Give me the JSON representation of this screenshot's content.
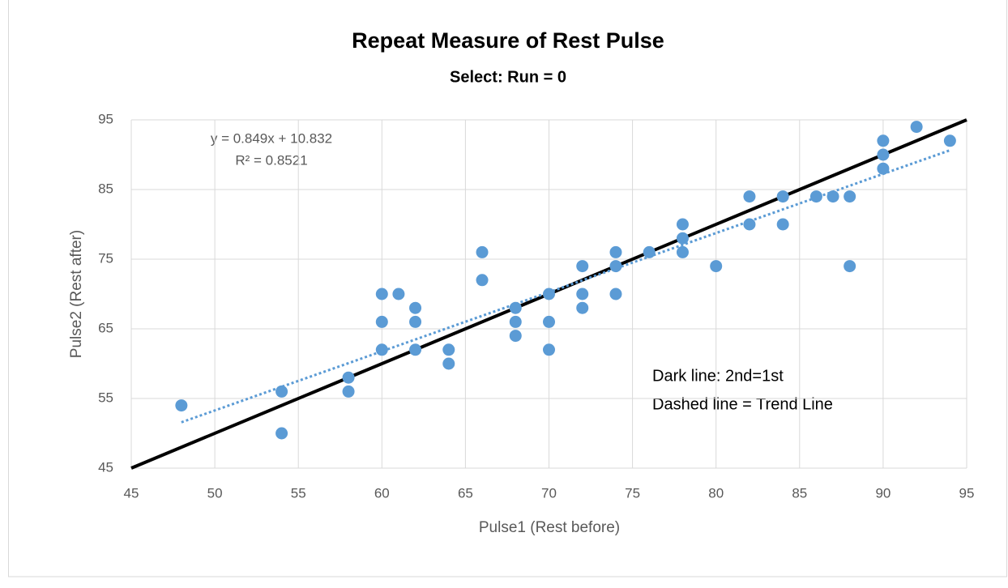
{
  "chart_data": {
    "type": "scatter",
    "title": "Repeat Measure of Rest Pulse",
    "subtitle": "Select: Run = 0",
    "x_label": "Pulse1 (Rest before)",
    "y_label": "Pulse2 (Rest after)",
    "annotations": [
      "y = 0.849x + 10.832",
      "R² = 0.8521",
      "Dark line: 2nd=1st",
      "Dashed line = Trend Line"
    ],
    "color": "#5b9bd5",
    "trend_color": "#5b9bd5",
    "reference_color": "#000000",
    "trendline": {
      "slope": 0.849,
      "intercept": 10.832
    },
    "identity_line": true,
    "grid": true,
    "xlim": [
      45,
      95
    ],
    "xticks": [
      45,
      50,
      55,
      60,
      65,
      70,
      75,
      80,
      85,
      90,
      95
    ],
    "ylim": [
      45,
      95
    ],
    "yticks": [
      45,
      55,
      65,
      75,
      85,
      95
    ],
    "x": [
      48,
      54,
      54,
      58,
      58,
      60,
      60,
      60,
      61,
      62,
      62,
      62,
      64,
      64,
      66,
      66,
      68,
      68,
      68,
      70,
      70,
      70,
      72,
      72,
      72,
      74,
      74,
      74,
      76,
      78,
      78,
      78,
      80,
      82,
      82,
      84,
      84,
      86,
      87,
      88,
      88,
      90,
      90,
      90,
      92,
      94
    ],
    "values": [
      54,
      56,
      50,
      58,
      56,
      70,
      66,
      62,
      70,
      68,
      66,
      62,
      62,
      60,
      76,
      72,
      68,
      66,
      64,
      70,
      66,
      62,
      74,
      70,
      68,
      76,
      74,
      70,
      76,
      80,
      78,
      76,
      74,
      84,
      80,
      84,
      80,
      84,
      84,
      84,
      74,
      92,
      90,
      88,
      94,
      92
    ]
  }
}
